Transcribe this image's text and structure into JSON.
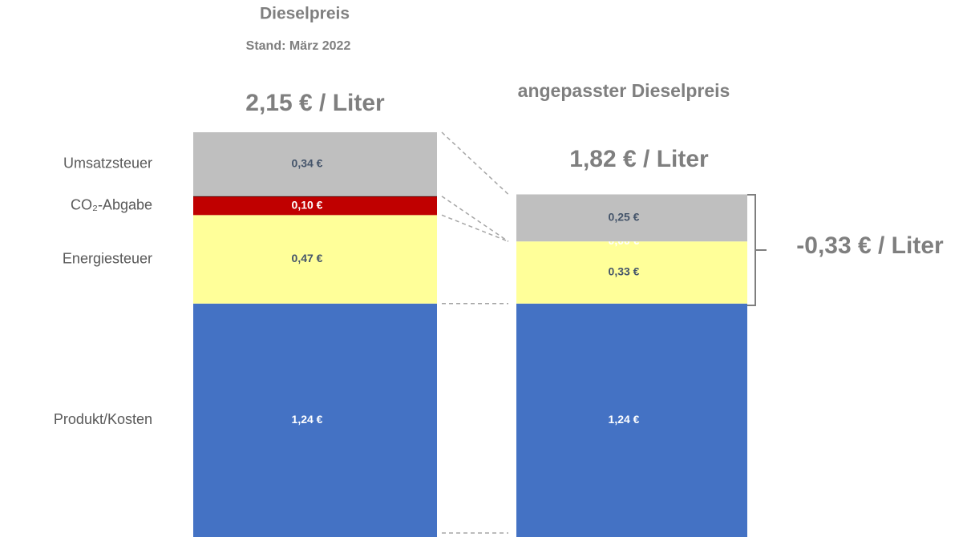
{
  "chart_data": {
    "type": "stacked_bar",
    "title": "Dieselpreis",
    "subtitle": "Stand: März 2022",
    "title_2": "angepasster Dieselpreis",
    "annotations": [
      "2,15 € / Liter",
      "1,82 € / Liter",
      "-0,33 € / Liter"
    ],
    "categories": [
      null,
      null
    ],
    "series": [
      {
        "name": "Produkt/Kosten",
        "color": "#4472c4",
        "label_color": "#ffffff",
        "values": [
          1.24,
          1.24
        ],
        "value_labels": [
          "1,24 €",
          "1,24 €"
        ]
      },
      {
        "name": "Energiesteuer",
        "color": "#ffff99",
        "label_color": "#44546a",
        "values": [
          0.47,
          0.33
        ],
        "value_labels": [
          "0,47 €",
          "0,33 €"
        ]
      },
      {
        "name": "CO₂-Abgabe",
        "color": "#c00000",
        "label_color": "#ffffff",
        "values": [
          0.1,
          0.0
        ],
        "value_labels": [
          "0,10 €",
          "0,00 €"
        ]
      },
      {
        "name": "Umsatzsteuer",
        "color": "#bfbfbf",
        "label_color": "#44546a",
        "values": [
          0.34,
          0.25
        ],
        "value_labels": [
          "0,34 €",
          "0,25 €"
        ]
      }
    ]
  }
}
